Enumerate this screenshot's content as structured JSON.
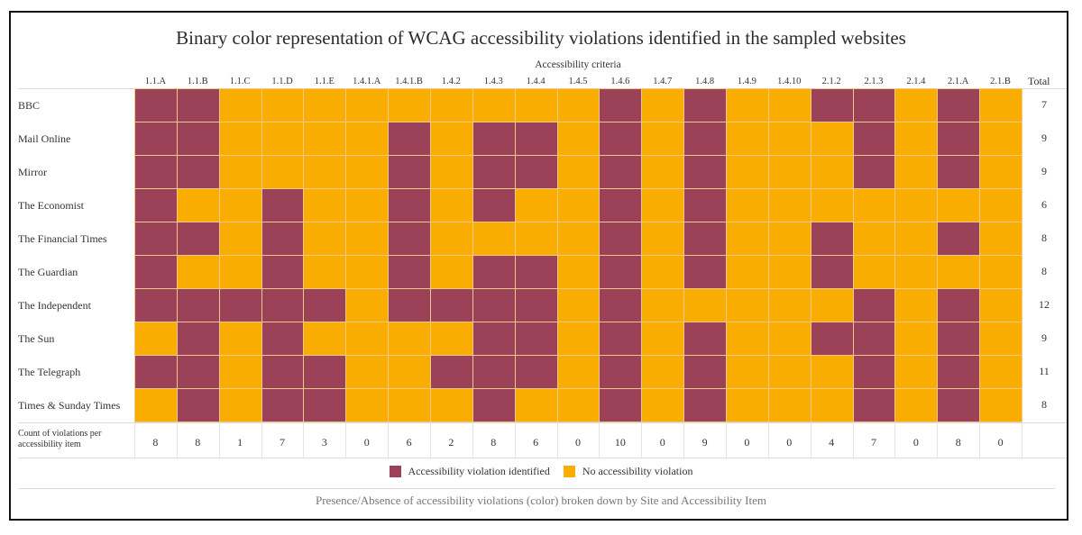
{
  "chart_data": {
    "type": "heatmap",
    "title": "Binary color representation of WCAG accessibility violations identified in the sampled websites",
    "xlabel": "Accessibility criteria",
    "ylabel": "",
    "caption": "Presence/Absence of accessibility violations (color) broken down by Site and Accessibility Item",
    "x": [
      "1.1.A",
      "1.1.B",
      "1.1.C",
      "1.1.D",
      "1.1.E",
      "1.4.1.A",
      "1.4.1.B",
      "1.4.2",
      "1.4.3",
      "1.4.4",
      "1.4.5",
      "1.4.6",
      "1.4.7",
      "1.4.8",
      "1.4.9",
      "1.4.10",
      "2.1.2",
      "2.1.3",
      "2.1.4",
      "2.1.A",
      "2.1.B"
    ],
    "y": [
      "BBC",
      "Mail Online",
      "Mirror",
      "The Economist",
      "The Financial Times",
      "The Guardian",
      "The Independent",
      "The Sun",
      "The Telegraph",
      "Times & Sunday Times"
    ],
    "values": [
      [
        1,
        1,
        0,
        0,
        0,
        0,
        0,
        0,
        0,
        0,
        0,
        1,
        0,
        1,
        0,
        0,
        1,
        1,
        0,
        1,
        0
      ],
      [
        1,
        1,
        0,
        0,
        0,
        0,
        1,
        0,
        1,
        1,
        0,
        1,
        0,
        1,
        0,
        0,
        0,
        1,
        0,
        1,
        0
      ],
      [
        1,
        1,
        0,
        0,
        0,
        0,
        1,
        0,
        1,
        1,
        0,
        1,
        0,
        1,
        0,
        0,
        0,
        1,
        0,
        1,
        0
      ],
      [
        1,
        0,
        0,
        1,
        0,
        0,
        1,
        0,
        1,
        0,
        0,
        1,
        0,
        1,
        0,
        0,
        0,
        0,
        0,
        0,
        0
      ],
      [
        1,
        1,
        0,
        1,
        0,
        0,
        1,
        0,
        0,
        0,
        0,
        1,
        0,
        1,
        0,
        0,
        1,
        0,
        0,
        1,
        0
      ],
      [
        1,
        0,
        0,
        1,
        0,
        0,
        1,
        0,
        1,
        1,
        0,
        1,
        0,
        1,
        0,
        0,
        1,
        0,
        0,
        0,
        0
      ],
      [
        1,
        1,
        1,
        1,
        1,
        0,
        1,
        1,
        1,
        1,
        0,
        1,
        0,
        0,
        0,
        0,
        0,
        1,
        0,
        1,
        0
      ],
      [
        0,
        1,
        0,
        1,
        0,
        0,
        0,
        0,
        1,
        1,
        0,
        1,
        0,
        1,
        0,
        0,
        1,
        1,
        0,
        1,
        0
      ],
      [
        1,
        1,
        0,
        1,
        1,
        0,
        0,
        1,
        1,
        1,
        0,
        1,
        0,
        1,
        0,
        0,
        0,
        1,
        0,
        1,
        0
      ],
      [
        0,
        1,
        0,
        1,
        1,
        0,
        0,
        0,
        1,
        0,
        0,
        1,
        0,
        1,
        0,
        0,
        0,
        1,
        0,
        1,
        0
      ]
    ],
    "total_header": "Total",
    "row_totals": [
      7,
      9,
      9,
      6,
      8,
      8,
      12,
      9,
      11,
      8
    ],
    "count_row_label": "Count of violations per accessibility item",
    "column_counts": [
      8,
      8,
      1,
      7,
      3,
      0,
      6,
      2,
      8,
      6,
      0,
      10,
      0,
      9,
      0,
      0,
      4,
      7,
      0,
      8,
      0
    ],
    "legend": [
      {
        "label": "Accessibility violation identified",
        "value": 1,
        "color": "#9b4158"
      },
      {
        "label": "No accessibility violation",
        "value": 0,
        "color": "#f8ad00"
      }
    ],
    "legend_position": "bottom",
    "grid": true
  }
}
